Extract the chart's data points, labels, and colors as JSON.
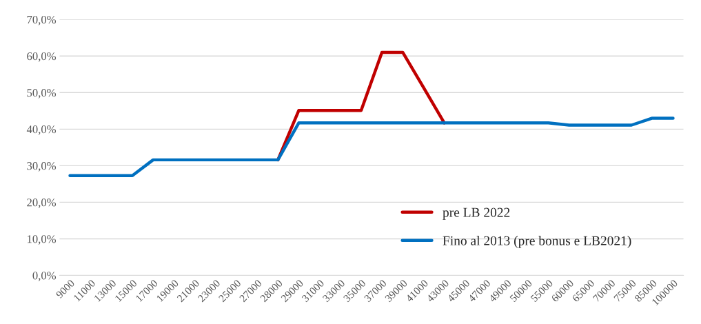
{
  "chart_data": {
    "type": "line",
    "categories": [
      "9000",
      "11000",
      "13000",
      "15000",
      "17000",
      "19000",
      "21000",
      "23000",
      "25000",
      "27000",
      "28000",
      "29000",
      "31000",
      "33000",
      "35000",
      "37000",
      "39000",
      "41000",
      "43000",
      "45000",
      "47000",
      "49000",
      "50000",
      "55000",
      "60000",
      "65000",
      "70000",
      "75000",
      "85000",
      "100000"
    ],
    "series": [
      {
        "name": "pre LB 2022",
        "color": "#c00000",
        "values": [
          null,
          null,
          null,
          null,
          null,
          null,
          null,
          null,
          null,
          null,
          31.6,
          45.1,
          45.1,
          45.1,
          45.1,
          61.0,
          61.0,
          51.4,
          41.7,
          null,
          null,
          null,
          null,
          null,
          null,
          null,
          null,
          null,
          null,
          null
        ]
      },
      {
        "name": "Fino al 2013 (pre bonus e LB2021)",
        "color": "#0070c0",
        "values": [
          27.3,
          27.3,
          27.3,
          27.3,
          31.6,
          31.6,
          31.6,
          31.6,
          31.6,
          31.6,
          31.6,
          41.7,
          41.7,
          41.7,
          41.7,
          41.7,
          41.7,
          41.7,
          41.7,
          41.7,
          41.7,
          41.7,
          41.7,
          41.7,
          41.1,
          41.1,
          41.1,
          41.1,
          43.0,
          43.0
        ]
      }
    ],
    "ylim": [
      0,
      70
    ],
    "yticks": [
      {
        "value": 0,
        "label": "0,0%"
      },
      {
        "value": 10,
        "label": "10,0%"
      },
      {
        "value": 20,
        "label": "20,0%"
      },
      {
        "value": 30,
        "label": "30,0%"
      },
      {
        "value": 40,
        "label": "40,0%"
      },
      {
        "value": 50,
        "label": "50,0%"
      },
      {
        "value": 60,
        "label": "60,0%"
      },
      {
        "value": 70,
        "label": "70,0%"
      }
    ],
    "grid": "y",
    "legend": "bottom right",
    "line_style": "solid"
  }
}
